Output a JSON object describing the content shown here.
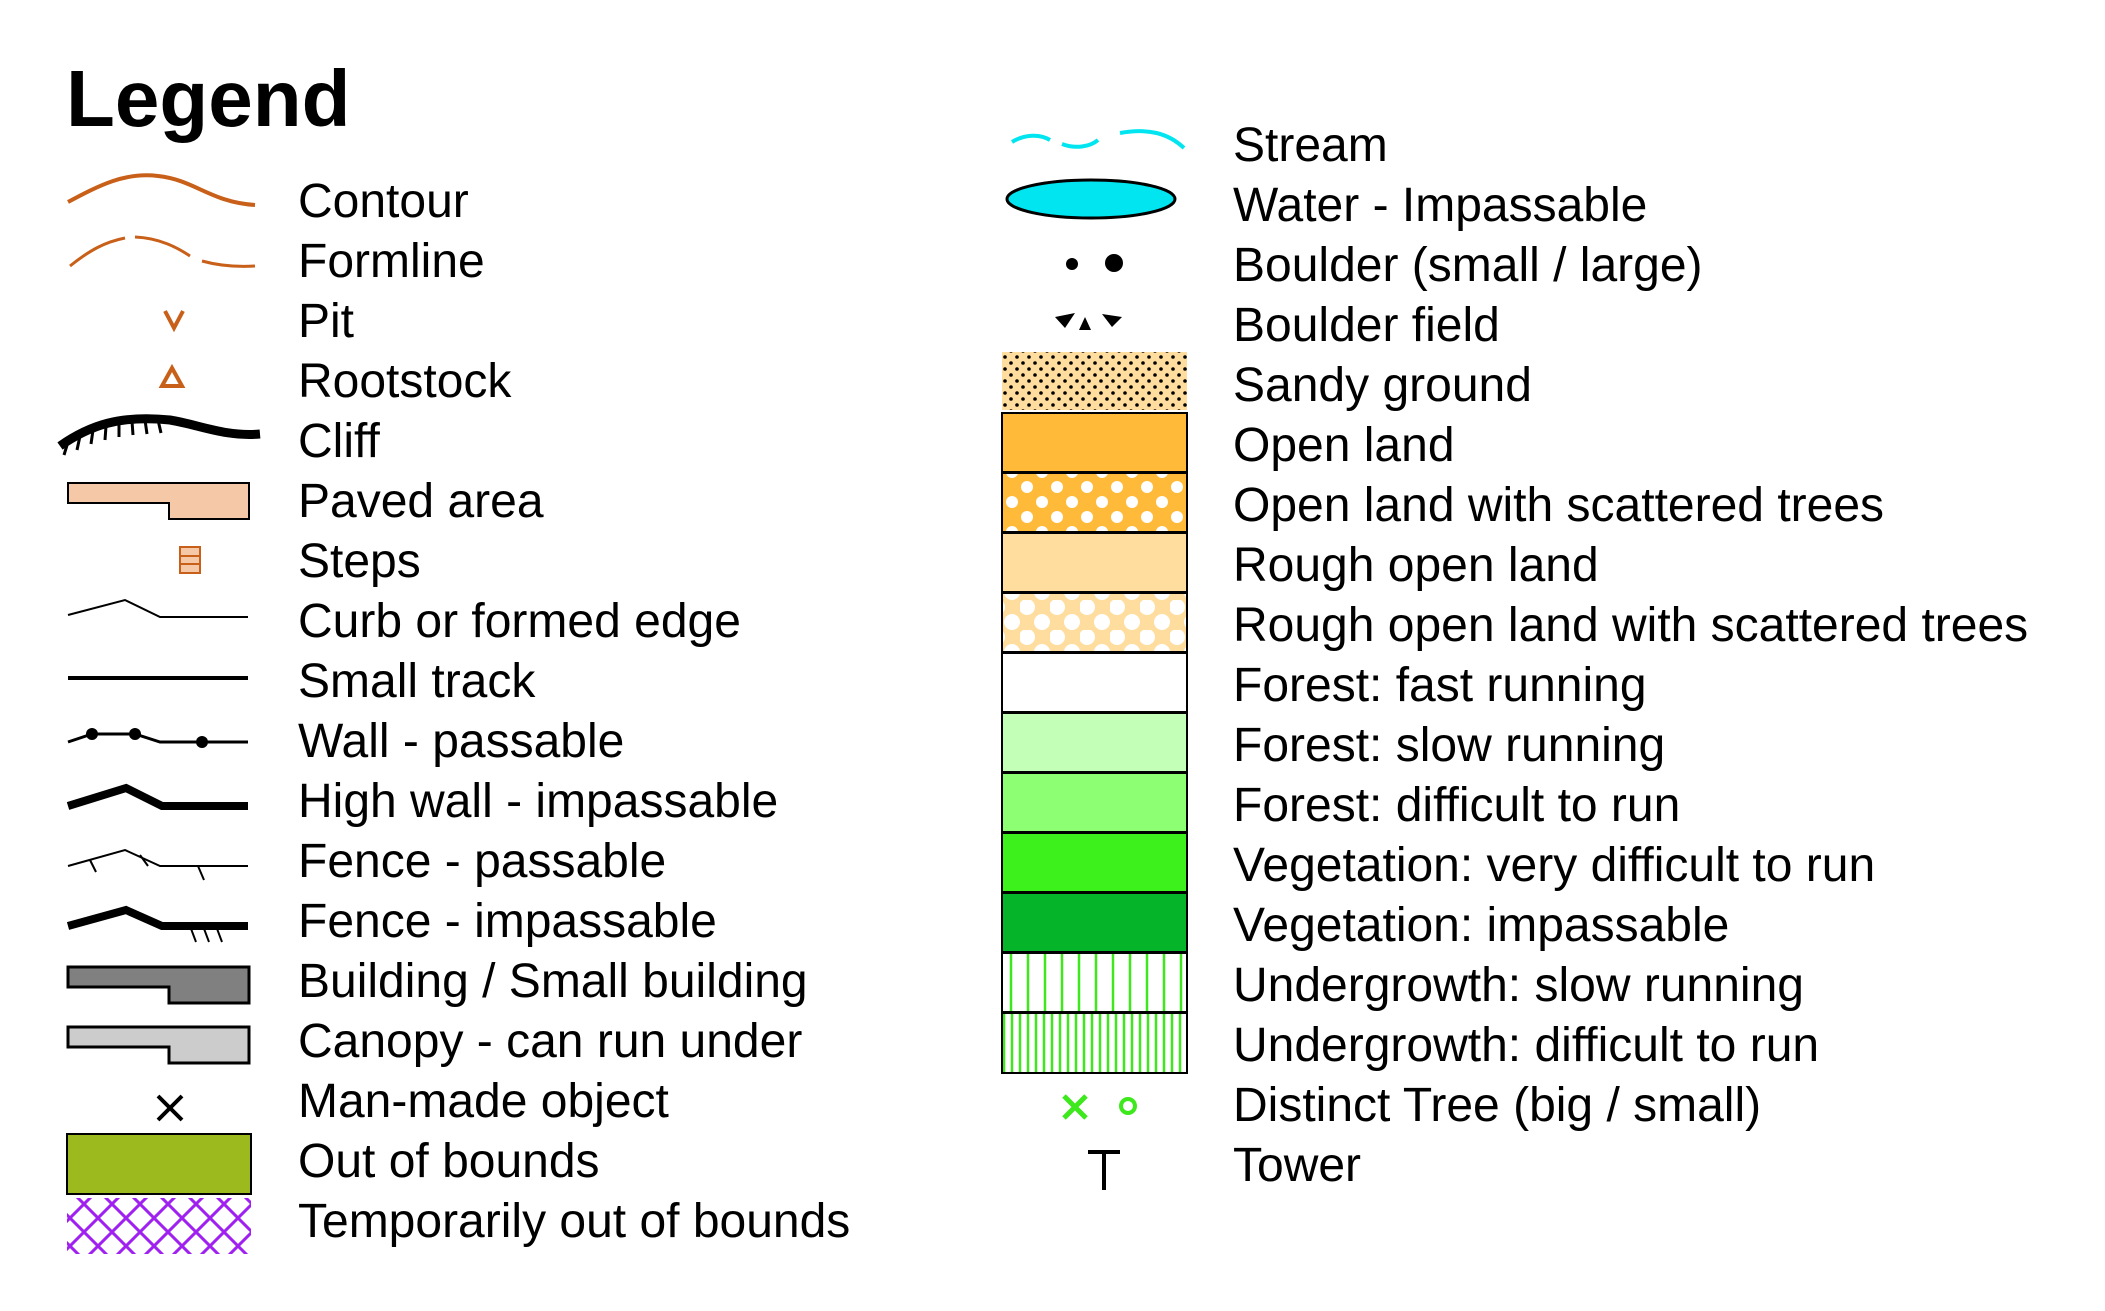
{
  "title": "Legend",
  "colors": {
    "contour": "#c8601a",
    "water": "#00e5f0",
    "paved": "#f5c9a8",
    "open_land": "#ffba3a",
    "rough_open": "#ffdd9e",
    "forest_slow": "#c4ffb8",
    "forest_difficult": "#8cff72",
    "veg_very_difficult": "#3df21c",
    "veg_impassable": "#06b42a",
    "undergrowth_line": "#3de81c",
    "building": "#808080",
    "canopy": "#cccccc",
    "out_of_bounds": "#9cba1e",
    "temp_out_of_bounds": "#a020f0",
    "distinct_tree": "#3de81c"
  },
  "left_column": [
    {
      "label": "Contour",
      "icon": "contour-icon"
    },
    {
      "label": "Formline",
      "icon": "formline-icon"
    },
    {
      "label": "Pit",
      "icon": "pit-icon"
    },
    {
      "label": "Rootstock",
      "icon": "rootstock-icon"
    },
    {
      "label": "Cliff",
      "icon": "cliff-icon"
    },
    {
      "label": "Paved area",
      "icon": "paved-area-icon"
    },
    {
      "label": "Steps",
      "icon": "steps-icon"
    },
    {
      "label": "Curb or formed edge",
      "icon": "curb-icon"
    },
    {
      "label": "Small track",
      "icon": "small-track-icon"
    },
    {
      "label": "Wall - passable",
      "icon": "wall-passable-icon"
    },
    {
      "label": "High wall - impassable",
      "icon": "high-wall-icon"
    },
    {
      "label": "Fence - passable",
      "icon": "fence-passable-icon"
    },
    {
      "label": "Fence - impassable",
      "icon": "fence-impassable-icon"
    },
    {
      "label": "Building / Small building",
      "icon": "building-icon"
    },
    {
      "label": "Canopy - can run under",
      "icon": "canopy-icon"
    },
    {
      "label": "Man-made object",
      "icon": "man-made-object-icon"
    },
    {
      "label": "Out of bounds",
      "icon": "out-of-bounds-icon"
    },
    {
      "label": "Temporarily out of bounds",
      "icon": "temporarily-out-of-bounds-icon"
    }
  ],
  "right_column": [
    {
      "label": "Stream",
      "icon": "stream-icon"
    },
    {
      "label": "Water - Impassable",
      "icon": "water-icon"
    },
    {
      "label": "Boulder (small / large)",
      "icon": "boulder-icon"
    },
    {
      "label": "Boulder field",
      "icon": "boulder-field-icon"
    },
    {
      "label": "Sandy ground",
      "icon": "sandy-ground-icon"
    },
    {
      "label": "Open land",
      "icon": "open-land-icon"
    },
    {
      "label": "Open land with scattered trees",
      "icon": "open-land-scattered-icon"
    },
    {
      "label": "Rough open land",
      "icon": "rough-open-land-icon"
    },
    {
      "label": "Rough open land with scattered trees",
      "icon": "rough-open-scattered-icon"
    },
    {
      "label": "Forest: fast running",
      "icon": "forest-fast-icon"
    },
    {
      "label": "Forest: slow running",
      "icon": "forest-slow-icon"
    },
    {
      "label": "Forest: difficult to run",
      "icon": "forest-difficult-icon"
    },
    {
      "label": "Vegetation: very difficult to run",
      "icon": "vegetation-very-difficult-icon"
    },
    {
      "label": "Vegetation: impassable",
      "icon": "vegetation-impassable-icon"
    },
    {
      "label": "Undergrowth: slow running",
      "icon": "undergrowth-slow-icon"
    },
    {
      "label": "Undergrowth: difficult to run",
      "icon": "undergrowth-difficult-icon"
    },
    {
      "label": "Distinct Tree (big / small)",
      "icon": "distinct-tree-icon"
    },
    {
      "label": "Tower",
      "icon": "tower-icon"
    }
  ]
}
